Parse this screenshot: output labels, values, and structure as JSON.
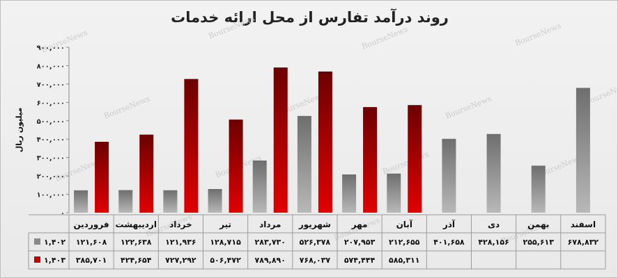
{
  "chart_data": {
    "type": "bar",
    "title": "روند درآمد تفارس از محل ارائه خدمات",
    "ylabel": "میلیون ریال",
    "ylim": [
      0,
      900000
    ],
    "yticks": [
      "۰",
      "۱۰۰,۰۰۰",
      "۲۰۰,۰۰۰",
      "۳۰۰,۰۰۰",
      "۴۰۰,۰۰۰",
      "۵۰۰,۰۰۰",
      "۶۰۰,۰۰۰",
      "۷۰۰,۰۰۰",
      "۸۰۰,۰۰۰",
      "۹۰۰,۰۰۰"
    ],
    "categories": [
      "فروردین",
      "اردیبهشت",
      "خرداد",
      "تیر",
      "مرداد",
      "شهریور",
      "مهر",
      "آبان",
      "آذر",
      "دی",
      "بهمن",
      "اسفند"
    ],
    "series": [
      {
        "name": "۱,۴۰۲",
        "color": "#8a8a8a",
        "values": [
          121608,
          122638,
          121936,
          128715,
          283730,
          526378,
          207953,
          212655,
          401658,
          428156,
          255613,
          678832
        ],
        "labels": [
          "۱۲۱,۶۰۸",
          "۱۲۲,۶۳۸",
          "۱۲۱,۹۳۶",
          "۱۲۸,۷۱۵",
          "۲۸۳,۷۳۰",
          "۵۲۶,۳۷۸",
          "۲۰۷,۹۵۳",
          "۲۱۲,۶۵۵",
          "۴۰۱,۶۵۸",
          "۴۲۸,۱۵۶",
          "۲۵۵,۶۱۳",
          "۶۷۸,۸۳۲"
        ]
      },
      {
        "name": "۱,۴۰۳",
        "color": "#c00000",
        "values": [
          385701,
          424654,
          727292,
          506472,
          789890,
          768037,
          574444,
          585311,
          null,
          null,
          null,
          null
        ],
        "labels": [
          "۳۸۵,۷۰۱",
          "۴۲۴,۶۵۴",
          "۷۲۷,۲۹۲",
          "۵۰۶,۴۷۲",
          "۷۸۹,۸۹۰",
          "۷۶۸,۰۳۷",
          "۵۷۴,۴۴۴",
          "۵۸۵,۳۱۱",
          "",
          "",
          "",
          ""
        ]
      }
    ],
    "grid": false,
    "legend": "data-table-left",
    "watermark": "BourseNews"
  }
}
